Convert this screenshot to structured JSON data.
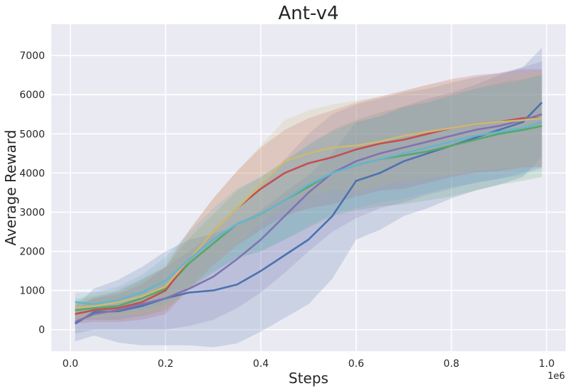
{
  "chart_data": {
    "type": "line",
    "title": "Ant-v4",
    "xlabel": "Steps",
    "ylabel": "Average Reward",
    "x_offset_label": "1e6",
    "x_scale": 1000000,
    "xlim": [
      -0.04,
      1.04
    ],
    "ylim": [
      -550,
      7800
    ],
    "xticks": [
      0.0,
      0.2,
      0.4,
      0.6,
      0.8,
      1.0
    ],
    "xtick_labels": [
      "0.0",
      "0.2",
      "0.4",
      "0.6",
      "0.8",
      "1.0"
    ],
    "yticks": [
      0,
      1000,
      2000,
      3000,
      4000,
      5000,
      6000,
      7000
    ],
    "ytick_labels": [
      "0",
      "1000",
      "2000",
      "3000",
      "4000",
      "5000",
      "6000",
      "7000"
    ],
    "grid": true,
    "background": "#eaeaf2",
    "x": [
      0.01,
      0.05,
      0.1,
      0.15,
      0.2,
      0.25,
      0.3,
      0.35,
      0.4,
      0.45,
      0.5,
      0.55,
      0.6,
      0.65,
      0.7,
      0.75,
      0.8,
      0.85,
      0.9,
      0.95,
      0.99
    ],
    "series": [
      {
        "color": "#4c72b0",
        "values": [
          150,
          450,
          470,
          600,
          800,
          950,
          1000,
          1150,
          1500,
          1900,
          2300,
          2900,
          3800,
          4000,
          4300,
          4500,
          4700,
          4900,
          5100,
          5300,
          5800
        ],
        "band": [
          450,
          600,
          800,
          1000,
          1200,
          1350,
          1450,
          1500,
          1550,
          1600,
          1650,
          1600,
          1500,
          1450,
          1400,
          1400,
          1350,
          1350,
          1400,
          1400,
          1400
        ]
      },
      {
        "color": "#55a868",
        "values": [
          500,
          550,
          600,
          800,
          1050,
          1700,
          2200,
          2700,
          2950,
          3300,
          3650,
          4000,
          4200,
          4350,
          4450,
          4550,
          4700,
          4850,
          5000,
          5100,
          5200
        ],
        "band": [
          250,
          300,
          350,
          450,
          550,
          650,
          750,
          850,
          950,
          1000,
          1050,
          1100,
          1150,
          1200,
          1250,
          1250,
          1300,
          1300,
          1300,
          1300,
          1300
        ]
      },
      {
        "color": "#c44e52",
        "values": [
          400,
          500,
          550,
          700,
          1000,
          1800,
          2500,
          3100,
          3600,
          4000,
          4250,
          4400,
          4600,
          4750,
          4850,
          5000,
          5150,
          5250,
          5300,
          5400,
          5400
        ],
        "band": [
          250,
          300,
          350,
          450,
          600,
          750,
          850,
          950,
          1050,
          1100,
          1150,
          1200,
          1200,
          1200,
          1250,
          1250,
          1250,
          1250,
          1250,
          1250,
          1250
        ]
      },
      {
        "color": "#8172b2",
        "values": [
          200,
          400,
          500,
          650,
          800,
          1050,
          1350,
          1800,
          2300,
          2900,
          3500,
          4000,
          4300,
          4500,
          4650,
          4800,
          4950,
          5100,
          5200,
          5350,
          5500
        ],
        "band": [
          300,
          400,
          500,
          650,
          800,
          950,
          1100,
          1250,
          1350,
          1450,
          1500,
          1500,
          1450,
          1400,
          1400,
          1350,
          1350,
          1350,
          1350,
          1350,
          1350
        ]
      },
      {
        "color": "#ccb974",
        "values": [
          550,
          600,
          700,
          850,
          1100,
          1800,
          2500,
          3100,
          3700,
          4300,
          4500,
          4650,
          4700,
          4800,
          4950,
          5050,
          5150,
          5250,
          5300,
          5350,
          5400
        ],
        "band": [
          250,
          300,
          350,
          450,
          600,
          750,
          850,
          950,
          1000,
          1050,
          1100,
          1100,
          1150,
          1150,
          1150,
          1200,
          1200,
          1200,
          1200,
          1200,
          1200
        ]
      },
      {
        "color": "#64b5cd",
        "values": [
          700,
          650,
          750,
          950,
          1250,
          1800,
          2300,
          2700,
          2950,
          3300,
          3700,
          4000,
          4200,
          4350,
          4500,
          4650,
          4800,
          4950,
          5050,
          5150,
          5300
        ],
        "band": [
          250,
          300,
          350,
          450,
          600,
          700,
          800,
          900,
          950,
          1000,
          1050,
          1050,
          1100,
          1100,
          1150,
          1150,
          1150,
          1200,
          1200,
          1200,
          1200
        ]
      }
    ]
  }
}
